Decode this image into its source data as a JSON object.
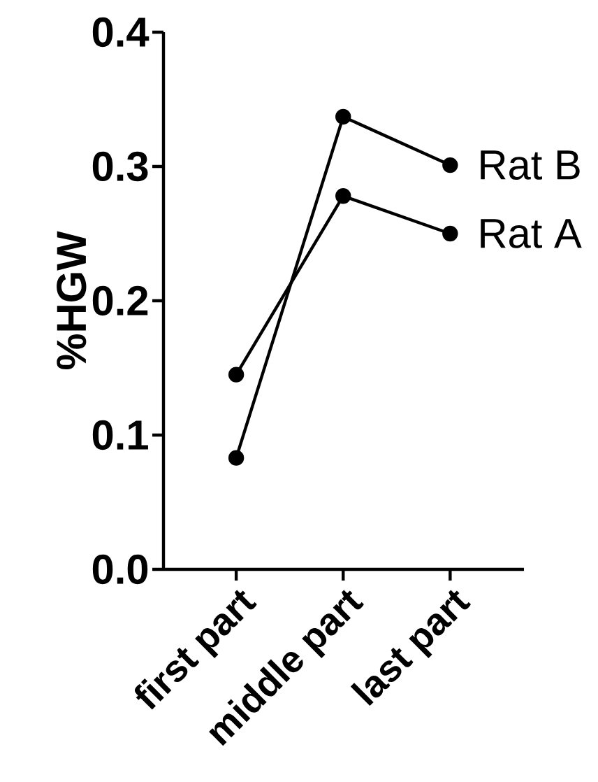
{
  "chart_data": {
    "type": "line",
    "ylabel": "%HGW",
    "categories": [
      "first part",
      "middle part",
      "last part"
    ],
    "series": [
      {
        "name": "Rat A",
        "color": "#000000",
        "values": [
          0.145,
          0.278,
          0.25
        ]
      },
      {
        "name": "Rat B",
        "color": "#000000",
        "values": [
          0.083,
          0.337,
          0.301
        ]
      }
    ],
    "ylim": [
      0,
      0.4
    ],
    "yticks": [
      {
        "value": 0,
        "label": "0.0"
      },
      {
        "value": 0.1,
        "label": "0.1"
      },
      {
        "value": 0.2,
        "label": "0.2"
      },
      {
        "value": 0.3,
        "label": "0.3"
      },
      {
        "value": 0.4,
        "label": "0.4"
      }
    ],
    "marker": "circle",
    "line_style": "solid"
  }
}
